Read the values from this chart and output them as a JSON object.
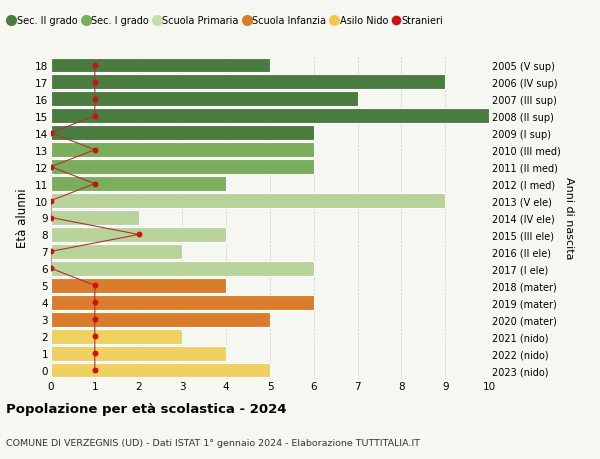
{
  "ages": [
    18,
    17,
    16,
    15,
    14,
    13,
    12,
    11,
    10,
    9,
    8,
    7,
    6,
    5,
    4,
    3,
    2,
    1,
    0
  ],
  "right_labels": [
    "2005 (V sup)",
    "2006 (IV sup)",
    "2007 (III sup)",
    "2008 (II sup)",
    "2009 (I sup)",
    "2010 (III med)",
    "2011 (II med)",
    "2012 (I med)",
    "2013 (V ele)",
    "2014 (IV ele)",
    "2015 (III ele)",
    "2016 (II ele)",
    "2017 (I ele)",
    "2018 (mater)",
    "2019 (mater)",
    "2020 (mater)",
    "2021 (nido)",
    "2022 (nido)",
    "2023 (nido)"
  ],
  "bar_values": [
    5,
    9,
    7,
    10,
    6,
    6,
    6,
    4,
    9,
    2,
    4,
    3,
    6,
    4,
    6,
    5,
    3,
    4,
    5
  ],
  "bar_colors": [
    "#4a7c3f",
    "#4a7c3f",
    "#4a7c3f",
    "#4a7c3f",
    "#4a7c3f",
    "#7aad5c",
    "#7aad5c",
    "#7aad5c",
    "#b8d49b",
    "#b8d49b",
    "#b8d49b",
    "#b8d49b",
    "#b8d49b",
    "#d97c2b",
    "#d97c2b",
    "#d97c2b",
    "#f0d060",
    "#f0d060",
    "#f0d060"
  ],
  "stranieri_x": [
    1,
    1,
    1,
    1,
    0,
    1,
    0,
    1,
    0,
    0,
    2,
    0,
    0,
    1,
    1,
    1,
    1,
    1,
    1
  ],
  "legend_labels": [
    "Sec. II grado",
    "Sec. I grado",
    "Scuola Primaria",
    "Scuola Infanzia",
    "Asilo Nido",
    "Stranieri"
  ],
  "legend_colors": [
    "#4a7c3f",
    "#7aad5c",
    "#c8dda8",
    "#d97c2b",
    "#f0c84a",
    "#cc1111"
  ],
  "ylabel": "Età alunni",
  "right_ylabel": "Anni di nascita",
  "title": "Popolazione per età scolastica - 2024",
  "subtitle": "COMUNE DI VERZEGNIS (UD) - Dati ISTAT 1° gennaio 2024 - Elaborazione TUTTITALIA.IT",
  "xlim": [
    0,
    10
  ],
  "background_color": "#f7f7f2",
  "bar_edge_color": "#ffffff",
  "grid_color": "#cccccc",
  "stranieri_line_color": "#aa3333",
  "stranieri_dot_color": "#cc1111"
}
